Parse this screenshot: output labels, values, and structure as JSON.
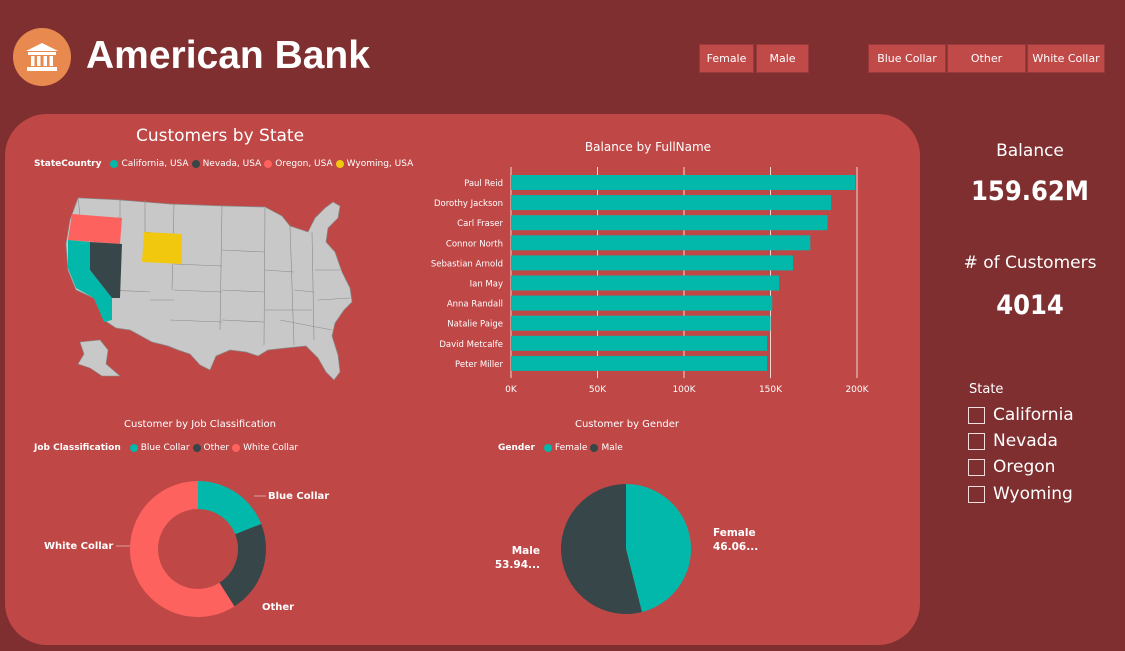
{
  "header": {
    "title": "American Bank",
    "gender_buttons": [
      "Female",
      "Male"
    ],
    "job_buttons": [
      "Blue Collar",
      "Other",
      "White Collar"
    ]
  },
  "colors": {
    "background": "#802f30",
    "panel": "#bf4847",
    "teal": "#01b8aa",
    "dark": "#374649",
    "coral": "#fd625e",
    "yellow": "#f2c80f",
    "map_gray": "#c8c8c8",
    "logo": "#e88a4f"
  },
  "map": {
    "title": "Customers by State",
    "legend_title": "StateCountry",
    "legend": [
      {
        "label": "California, USA",
        "color": "#01b8aa"
      },
      {
        "label": "Nevada, USA",
        "color": "#374649"
      },
      {
        "label": "Oregon, USA",
        "color": "#fd625e"
      },
      {
        "label": "Wyoming, USA",
        "color": "#f2c80f"
      }
    ]
  },
  "bar_chart": {
    "title": "Balance by FullName",
    "tick_labels": [
      "0K",
      "50K",
      "100K",
      "150K",
      "200K"
    ]
  },
  "donut_chart": {
    "title": "Customer by Job Classification",
    "legend_title": "Job Classification",
    "legend": [
      "Blue Collar",
      "Other",
      "White Collar"
    ]
  },
  "pie_chart": {
    "title": "Customer by Gender",
    "legend_title": "Gender",
    "legend": [
      "Female",
      "Male"
    ],
    "female_label": "Female",
    "female_value": "46.06...",
    "male_label": "Male",
    "male_value": "53.94..."
  },
  "kpis": {
    "balance_label": "Balance",
    "balance_value": "159.62M",
    "customers_label": "# of Customers",
    "customers_value": "4014"
  },
  "state_slicer": {
    "title": "State",
    "items": [
      "California",
      "Nevada",
      "Oregon",
      "Wyoming"
    ]
  },
  "chart_data": [
    {
      "type": "bar",
      "orientation": "horizontal",
      "title": "Balance by FullName",
      "categories": [
        "Paul Reid",
        "Dorothy Jackson",
        "Carl Fraser",
        "Connor North",
        "Sebastian Arnold",
        "Ian May",
        "Anna Randall",
        "Natalie Paige",
        "David Metcalfe",
        "Peter Miller"
      ],
      "values": [
        199000,
        185000,
        183000,
        173000,
        163000,
        155000,
        151000,
        150000,
        148000,
        148000
      ],
      "xlim": [
        0,
        200000
      ],
      "grid": true
    },
    {
      "type": "pie",
      "variant": "donut",
      "title": "Customer by Job Classification",
      "categories": [
        "Blue Collar",
        "Other",
        "White Collar"
      ],
      "values": [
        19,
        22,
        59
      ]
    },
    {
      "type": "pie",
      "title": "Customer by Gender",
      "categories": [
        "Female",
        "Male"
      ],
      "values": [
        46.06,
        53.94
      ]
    }
  ]
}
